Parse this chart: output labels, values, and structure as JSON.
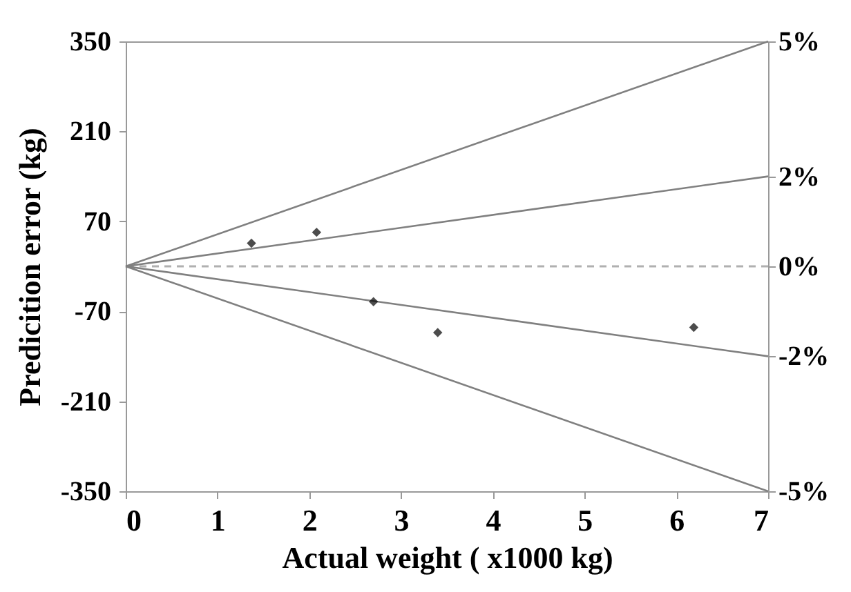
{
  "chart_data": {
    "type": "scatter",
    "xlabel": "Actual weight ( x1000 kg)",
    "ylabel": "Predicition error (kg)",
    "xlim": [
      0,
      7
    ],
    "xticks": [
      0,
      1,
      2,
      3,
      4,
      5,
      6,
      7
    ],
    "ylim": [
      -350,
      350
    ],
    "yticks": [
      -350,
      -210,
      -70,
      70,
      210,
      350
    ],
    "y2lim": [
      -5,
      5
    ],
    "y2ticks": [
      {
        "value": -5,
        "label": "-5%"
      },
      {
        "value": -2,
        "label": "-2%"
      },
      {
        "value": 0,
        "label": "0%"
      },
      {
        "value": 2,
        "label": "2%"
      },
      {
        "value": 5,
        "label": "5%"
      }
    ],
    "grid": false,
    "series": [
      {
        "type": "line",
        "color": "#808080",
        "x": [
          0,
          7
        ],
        "values": [
          0,
          350
        ]
      },
      {
        "type": "line",
        "color": "#808080",
        "x": [
          0,
          7
        ],
        "values": [
          0,
          140
        ]
      },
      {
        "type": "line",
        "color": "#808080",
        "x": [
          0,
          7
        ],
        "values": [
          0,
          -140
        ]
      },
      {
        "type": "line",
        "color": "#808080",
        "x": [
          0,
          7
        ],
        "values": [
          0,
          -350
        ]
      },
      {
        "color": "#000000",
        "marker": "diamond",
        "x": [
          1.37,
          2.08,
          2.7,
          3.4,
          6.19
        ],
        "values": [
          36,
          53,
          -55,
          -103,
          -95
        ]
      }
    ],
    "ref_lines": [
      {
        "axis": "y2",
        "value": 0,
        "color": "#b0b0b0",
        "line_style": "dashed"
      }
    ]
  }
}
